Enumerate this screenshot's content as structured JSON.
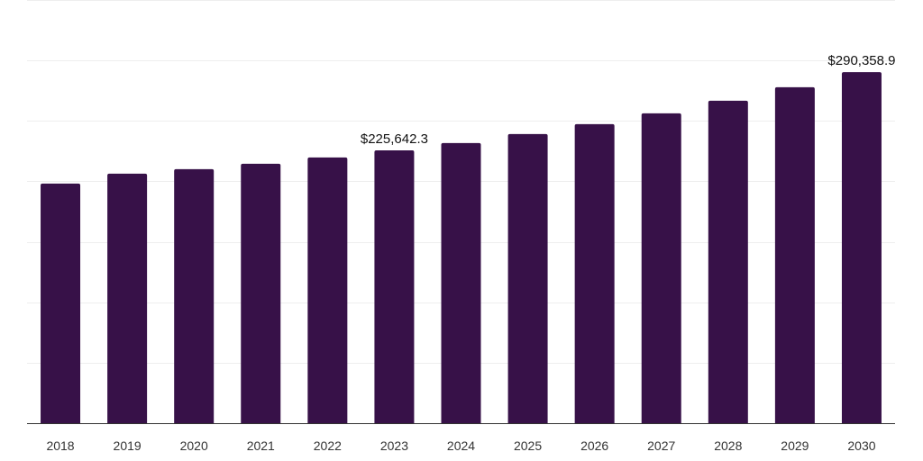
{
  "chart_data": {
    "type": "bar",
    "title": "",
    "xlabel": "",
    "ylabel": "",
    "categories": [
      "2018",
      "2019",
      "2020",
      "2021",
      "2022",
      "2023",
      "2024",
      "2025",
      "2026",
      "2027",
      "2028",
      "2029",
      "2030"
    ],
    "values": [
      198200,
      206400,
      210100,
      214600,
      219800,
      225642.3,
      231700,
      239100,
      247300,
      256300,
      266700,
      277900,
      290358.9
    ],
    "data_labels": [
      {
        "category": "2023",
        "text": "$225,642.3"
      },
      {
        "category": "2030",
        "text": "$290,358.9"
      }
    ],
    "ylim": [
      0,
      350000
    ],
    "grid_step": 50000,
    "grid": true,
    "bar_color": "#371148"
  }
}
